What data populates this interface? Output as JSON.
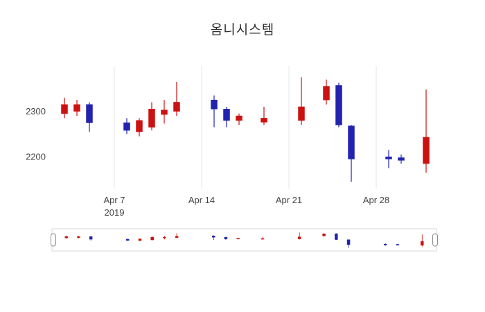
{
  "chart_data": {
    "type": "candlestick",
    "title": "옴니시스템",
    "increasing_color": "#cc1111",
    "decreasing_color": "#2323b0",
    "grid_color": "#e6e6e6",
    "background_color": "#ffffff",
    "ylim": [
      2130,
      2400
    ],
    "xlim": [
      "2019-04-02",
      "2019-05-03"
    ],
    "y_ticks": [
      2300,
      2200
    ],
    "x_ticks": [
      {
        "label": "Apr 7",
        "sublabel": "2019",
        "date": "2019-04-07"
      },
      {
        "label": "Apr 14",
        "date": "2019-04-14"
      },
      {
        "label": "Apr 21",
        "date": "2019-04-21"
      },
      {
        "label": "Apr 28",
        "date": "2019-04-28"
      }
    ],
    "rangeslider": true,
    "series": [
      {
        "date": "2019-04-03",
        "open": 2295,
        "high": 2330,
        "low": 2285,
        "close": 2315
      },
      {
        "date": "2019-04-04",
        "open": 2300,
        "high": 2325,
        "low": 2290,
        "close": 2315
      },
      {
        "date": "2019-04-05",
        "open": 2315,
        "high": 2320,
        "low": 2255,
        "close": 2275
      },
      {
        "date": "2019-04-08",
        "open": 2275,
        "high": 2285,
        "low": 2250,
        "close": 2258
      },
      {
        "date": "2019-04-09",
        "open": 2255,
        "high": 2285,
        "low": 2245,
        "close": 2280
      },
      {
        "date": "2019-04-10",
        "open": 2265,
        "high": 2320,
        "low": 2258,
        "close": 2305
      },
      {
        "date": "2019-04-11",
        "open": 2293,
        "high": 2325,
        "low": 2273,
        "close": 2303
      },
      {
        "date": "2019-04-12",
        "open": 2300,
        "high": 2365,
        "low": 2290,
        "close": 2320
      },
      {
        "date": "2019-04-15",
        "open": 2325,
        "high": 2335,
        "low": 2265,
        "close": 2305
      },
      {
        "date": "2019-04-16",
        "open": 2305,
        "high": 2310,
        "low": 2265,
        "close": 2280
      },
      {
        "date": "2019-04-17",
        "open": 2280,
        "high": 2295,
        "low": 2270,
        "close": 2290
      },
      {
        "date": "2019-04-19",
        "open": 2276,
        "high": 2310,
        "low": 2270,
        "close": 2285
      },
      {
        "date": "2019-04-22",
        "open": 2280,
        "high": 2375,
        "low": 2270,
        "close": 2310
      },
      {
        "date": "2019-04-24",
        "open": 2325,
        "high": 2370,
        "low": 2315,
        "close": 2355
      },
      {
        "date": "2019-04-25",
        "open": 2357,
        "high": 2363,
        "low": 2265,
        "close": 2270
      },
      {
        "date": "2019-04-26",
        "open": 2268,
        "high": 2270,
        "low": 2145,
        "close": 2195
      },
      {
        "date": "2019-04-29",
        "open": 2200,
        "high": 2215,
        "low": 2175,
        "close": 2195
      },
      {
        "date": "2019-04-30",
        "open": 2198,
        "high": 2205,
        "low": 2185,
        "close": 2192
      },
      {
        "date": "2019-05-02",
        "open": 2185,
        "high": 2348,
        "low": 2165,
        "close": 2243
      }
    ]
  }
}
